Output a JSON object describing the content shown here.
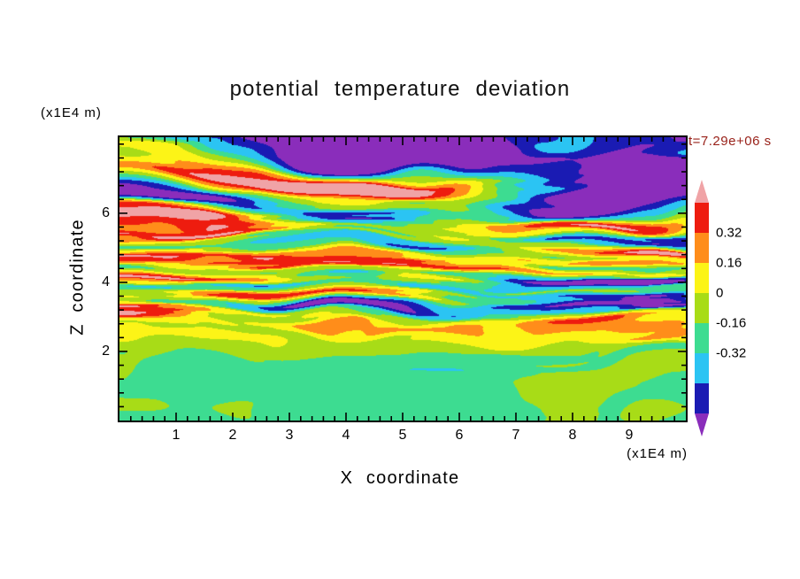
{
  "colorbar": {
    "labels": [
      "0.32",
      "0.16",
      "0",
      "-0.16",
      "-0.32"
    ],
    "arrow_top_color": "#f0a3a6",
    "arrow_bottom_color": "#8a2dbb",
    "segment_colors_top_to_bottom": [
      "#ee1c0f",
      "#ff8d1a",
      "#fcf417",
      "#a8dc17",
      "#3ddc91",
      "#2bc4f3",
      "#1a1bb3"
    ]
  },
  "chart_data": {
    "type": "heatmap",
    "title": "potential temperature deviation",
    "xlabel": "X coordinate",
    "ylabel": "Z coordinate",
    "x_unit": "(x1E4 m)",
    "y_unit": "(x1E4 m)",
    "time_annotation": "t=7.29e+06 s",
    "xlim": [
      0,
      10
    ],
    "ylim": [
      0,
      8.2
    ],
    "xticks": [
      1,
      2,
      3,
      4,
      5,
      6,
      7,
      8,
      9
    ],
    "yticks": [
      2,
      4,
      6
    ],
    "x_minor_step": 0.2,
    "y_minor_step": 0.4,
    "contour_levels": [
      -0.64,
      -0.48,
      -0.32,
      -0.16,
      0,
      0.16,
      0.32,
      0.48
    ],
    "palette_low_to_high": [
      "#8a2dbb",
      "#1a1bb3",
      "#2bc4f3",
      "#3ddc91",
      "#a8dc17",
      "#fcf417",
      "#ff8d1a",
      "#ee1c0f",
      "#f0a3a6"
    ],
    "colorbar_tick_labels": [
      "0.32",
      "0.16",
      "0",
      "-0.16",
      "-0.32"
    ],
    "field_synthesis": {
      "seed": 11,
      "note": "procedural stand-in for the stratified-turbulence deviation field: calm near-zero mixed layer below z=2, thin strong layers for 2<z<5, thick high-amplitude bands above",
      "offset_profile": [
        [
          0,
          -0.19
        ],
        [
          0.22,
          -0.18
        ],
        [
          0.34,
          -0.02
        ],
        [
          1,
          0
        ]
      ],
      "amplitude_profile": [
        [
          0,
          0.1
        ],
        [
          0.2,
          0.12
        ],
        [
          0.3,
          0.26
        ],
        [
          0.38,
          0.5
        ],
        [
          0.6,
          0.52
        ],
        [
          0.75,
          0.8
        ],
        [
          1,
          0.86
        ]
      ],
      "layer_frequency_profile": [
        [
          0,
          4.5
        ],
        [
          0.22,
          6
        ],
        [
          0.3,
          18
        ],
        [
          0.38,
          30
        ],
        [
          0.58,
          27
        ],
        [
          0.72,
          12
        ],
        [
          1,
          9
        ]
      ]
    }
  }
}
